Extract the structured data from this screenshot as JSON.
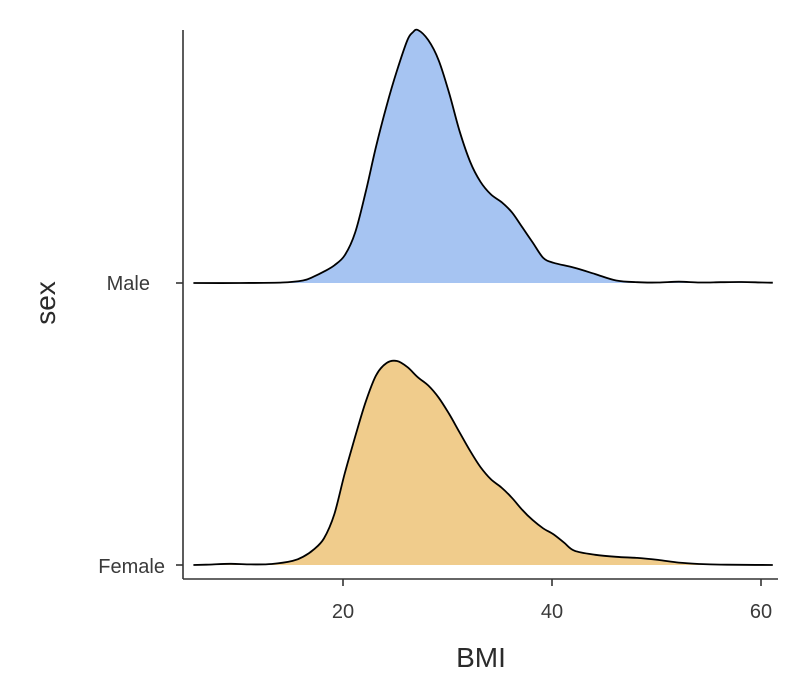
{
  "chart_data": {
    "type": "area",
    "subtype": "ridgeline-density",
    "xlabel": "BMI",
    "ylabel": "sex",
    "xlim": [
      4.5,
      61.5
    ],
    "x_ticks": [
      20,
      40,
      60
    ],
    "grid": false,
    "legend": "none",
    "series": [
      {
        "name": "Male",
        "color": "#a6c4f2",
        "range": [
          5.5,
          61
        ],
        "points": [
          [
            5.5,
            0
          ],
          [
            10,
            0
          ],
          [
            14,
            0.002
          ],
          [
            16,
            0.01
          ],
          [
            17,
            0.025
          ],
          [
            18,
            0.045
          ],
          [
            19,
            0.07
          ],
          [
            20,
            0.11
          ],
          [
            21,
            0.2
          ],
          [
            22,
            0.36
          ],
          [
            23,
            0.54
          ],
          [
            24,
            0.7
          ],
          [
            25,
            0.84
          ],
          [
            26,
            0.96
          ],
          [
            26.5,
            0.99
          ],
          [
            27,
            1.0
          ],
          [
            28,
            0.96
          ],
          [
            29,
            0.88
          ],
          [
            30,
            0.75
          ],
          [
            31,
            0.6
          ],
          [
            32,
            0.48
          ],
          [
            33,
            0.4
          ],
          [
            34,
            0.35
          ],
          [
            35,
            0.32
          ],
          [
            36,
            0.28
          ],
          [
            37,
            0.22
          ],
          [
            38,
            0.16
          ],
          [
            39,
            0.1
          ],
          [
            40,
            0.08
          ],
          [
            42,
            0.06
          ],
          [
            44,
            0.035
          ],
          [
            46,
            0.01
          ],
          [
            48,
            0.003
          ],
          [
            50,
            0.002
          ],
          [
            52,
            0.005
          ],
          [
            54,
            0.002
          ],
          [
            56,
            0.003
          ],
          [
            58,
            0.004
          ],
          [
            60,
            0.002
          ],
          [
            61,
            0.001
          ]
        ]
      },
      {
        "name": "Female",
        "color": "#f0cc8c",
        "range": [
          5.5,
          61
        ],
        "points": [
          [
            5.5,
            0
          ],
          [
            7,
            0.002
          ],
          [
            9,
            0.006
          ],
          [
            11,
            0.003
          ],
          [
            13,
            0.005
          ],
          [
            15,
            0.02
          ],
          [
            16,
            0.04
          ],
          [
            17,
            0.075
          ],
          [
            18,
            0.13
          ],
          [
            19,
            0.25
          ],
          [
            20,
            0.45
          ],
          [
            21,
            0.63
          ],
          [
            22,
            0.8
          ],
          [
            23,
            0.93
          ],
          [
            24,
            0.99
          ],
          [
            25,
            1.0
          ],
          [
            26,
            0.97
          ],
          [
            27,
            0.92
          ],
          [
            28,
            0.88
          ],
          [
            29,
            0.82
          ],
          [
            30,
            0.74
          ],
          [
            31,
            0.65
          ],
          [
            32,
            0.56
          ],
          [
            33,
            0.48
          ],
          [
            34,
            0.42
          ],
          [
            35,
            0.38
          ],
          [
            36,
            0.33
          ],
          [
            37,
            0.27
          ],
          [
            38,
            0.22
          ],
          [
            39,
            0.18
          ],
          [
            40,
            0.15
          ],
          [
            41,
            0.11
          ],
          [
            42,
            0.07
          ],
          [
            44,
            0.05
          ],
          [
            46,
            0.04
          ],
          [
            48,
            0.035
          ],
          [
            50,
            0.025
          ],
          [
            52,
            0.012
          ],
          [
            54,
            0.005
          ],
          [
            56,
            0.002
          ],
          [
            58,
            0.001
          ],
          [
            61,
            0
          ]
        ]
      }
    ],
    "y_categories": [
      "Female",
      "Male"
    ]
  }
}
